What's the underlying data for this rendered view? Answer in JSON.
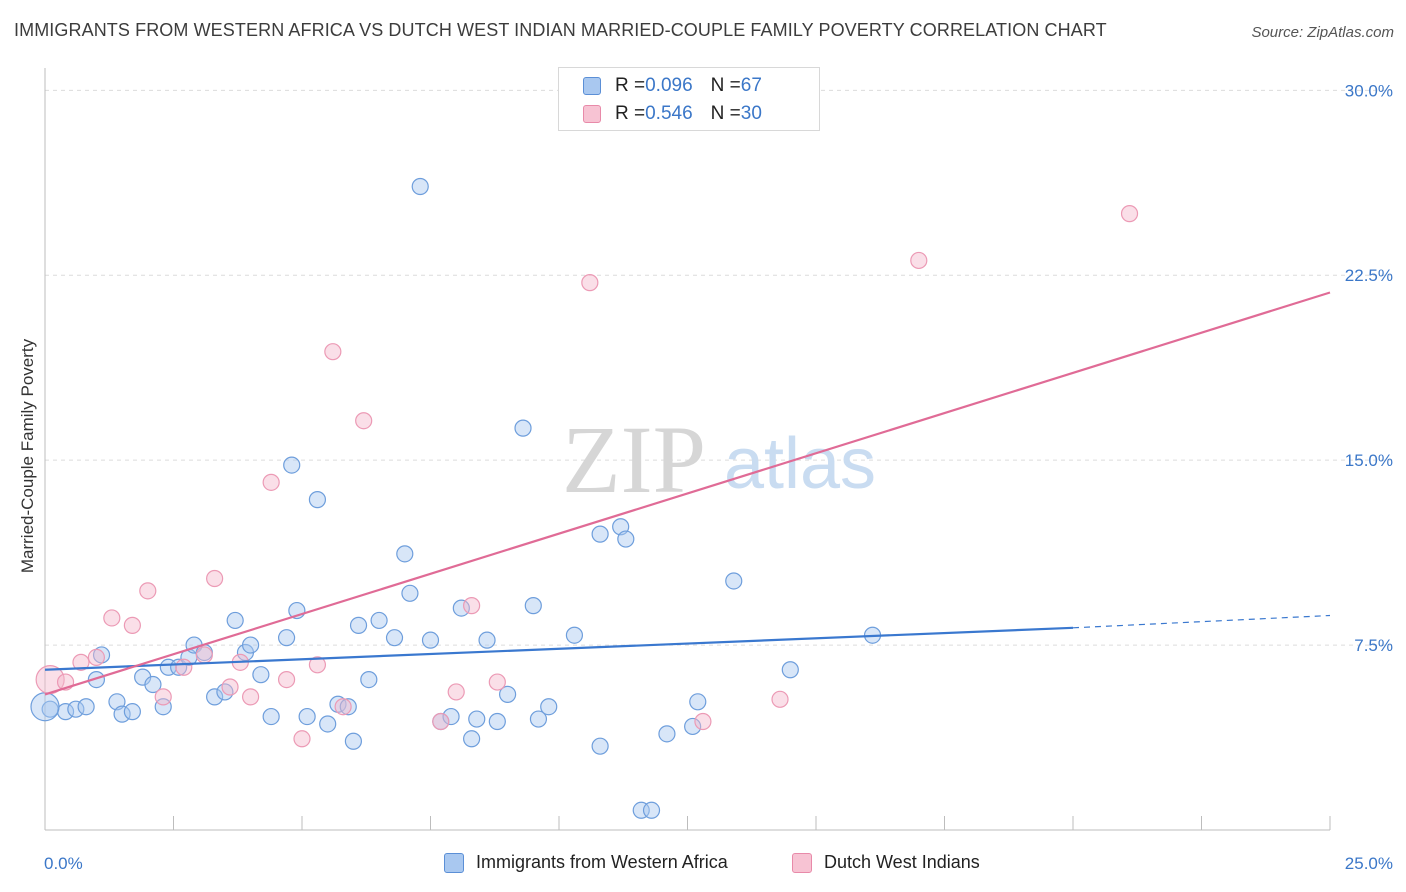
{
  "title": "IMMIGRANTS FROM WESTERN AFRICA VS DUTCH WEST INDIAN MARRIED-COUPLE FAMILY POVERTY CORRELATION CHART",
  "source": "Source: ZipAtlas.com",
  "colors": {
    "blue": "#3a78cf",
    "blue_fill": "#a9c8f0",
    "pink": "#e06b96",
    "pink_fill": "#f5b8cb",
    "grid": "#dddddd",
    "tick_text": "#3b77c8"
  },
  "legend": {
    "rows": [
      {
        "r_label": "R = ",
        "r_value": "0.096",
        "n_label": "N = ",
        "n_value": "67"
      },
      {
        "r_label": "R = ",
        "r_value": "0.546",
        "n_label": "N = ",
        "n_value": "30"
      }
    ]
  },
  "watermark": {
    "zip": "ZIP",
    "atlas": "atlas"
  },
  "chart_data": {
    "type": "scatter",
    "title": "IMMIGRANTS FROM WESTERN AFRICA VS DUTCH WEST INDIAN MARRIED-COUPLE FAMILY POVERTY CORRELATION CHART",
    "xlabel": "",
    "ylabel": "Married-Couple Family Poverty",
    "xlim": [
      0,
      25
    ],
    "ylim": [
      0,
      30.5
    ],
    "x_tick_labels": [
      {
        "value": 0,
        "label": "0.0%"
      },
      {
        "value": 25,
        "label": "25.0%"
      }
    ],
    "y_tick_labels": [
      {
        "value": 7.5,
        "label": "7.5%"
      },
      {
        "value": 15,
        "label": "15.0%"
      },
      {
        "value": 22.5,
        "label": "22.5%"
      },
      {
        "value": 30,
        "label": "30.0%"
      }
    ],
    "x_minor_ticks": [
      2.5,
      5,
      7.5,
      10,
      12.5,
      15,
      17.5,
      20,
      22.5,
      25
    ],
    "grid": true,
    "legend_position": "top-center",
    "series": [
      {
        "name": "Immigrants from Western Africa",
        "color": "#3a78cf",
        "r": 0.096,
        "n": 67,
        "trend": {
          "x0": 0,
          "y0": 6.5,
          "x1": 20,
          "y1": 8.2,
          "dashed_to_x": 25,
          "dashed_to_y": 8.7
        },
        "points": [
          [
            0.1,
            4.9
          ],
          [
            0.4,
            4.8
          ],
          [
            0.6,
            4.9
          ],
          [
            0.8,
            5.0
          ],
          [
            1.0,
            6.1
          ],
          [
            1.1,
            7.1
          ],
          [
            1.4,
            5.2
          ],
          [
            1.5,
            4.7
          ],
          [
            1.7,
            4.8
          ],
          [
            1.9,
            6.2
          ],
          [
            2.1,
            5.9
          ],
          [
            2.3,
            5.0
          ],
          [
            2.4,
            6.6
          ],
          [
            2.6,
            6.6
          ],
          [
            2.8,
            7.0
          ],
          [
            2.9,
            7.5
          ],
          [
            3.1,
            7.2
          ],
          [
            3.3,
            5.4
          ],
          [
            3.5,
            5.6
          ],
          [
            3.7,
            8.5
          ],
          [
            3.9,
            7.2
          ],
          [
            4.0,
            7.5
          ],
          [
            4.2,
            6.3
          ],
          [
            4.4,
            4.6
          ],
          [
            4.7,
            7.8
          ],
          [
            4.8,
            14.8
          ],
          [
            4.9,
            8.9
          ],
          [
            5.1,
            4.6
          ],
          [
            5.3,
            13.4
          ],
          [
            5.5,
            4.3
          ],
          [
            5.7,
            5.1
          ],
          [
            5.9,
            5.0
          ],
          [
            6.0,
            3.6
          ],
          [
            6.1,
            8.3
          ],
          [
            6.3,
            6.1
          ],
          [
            6.5,
            8.5
          ],
          [
            6.8,
            7.8
          ],
          [
            7.0,
            11.2
          ],
          [
            7.1,
            9.6
          ],
          [
            7.3,
            26.1
          ],
          [
            7.5,
            7.7
          ],
          [
            7.7,
            4.4
          ],
          [
            7.9,
            4.6
          ],
          [
            8.1,
            9.0
          ],
          [
            8.3,
            3.7
          ],
          [
            8.4,
            4.5
          ],
          [
            8.6,
            7.7
          ],
          [
            8.8,
            4.4
          ],
          [
            9.0,
            5.5
          ],
          [
            9.3,
            16.3
          ],
          [
            9.5,
            9.1
          ],
          [
            9.6,
            4.5
          ],
          [
            9.8,
            5.0
          ],
          [
            10.3,
            7.9
          ],
          [
            10.8,
            3.4
          ],
          [
            10.8,
            12.0
          ],
          [
            11.2,
            12.3
          ],
          [
            11.3,
            11.8
          ],
          [
            11.6,
            0.8
          ],
          [
            11.8,
            0.8
          ],
          [
            12.1,
            3.9
          ],
          [
            12.6,
            4.2
          ],
          [
            12.7,
            5.2
          ],
          [
            13.4,
            10.1
          ],
          [
            14.5,
            6.5
          ],
          [
            16.1,
            7.9
          ],
          [
            0.0,
            5.0
          ]
        ]
      },
      {
        "name": "Dutch West Indians",
        "color": "#e06b96",
        "r": 0.546,
        "n": 30,
        "trend": {
          "x0": 0,
          "y0": 5.5,
          "x1": 25,
          "y1": 21.8
        },
        "points": [
          [
            0.1,
            6.1
          ],
          [
            0.4,
            6.0
          ],
          [
            0.7,
            6.8
          ],
          [
            1.0,
            7.0
          ],
          [
            1.3,
            8.6
          ],
          [
            1.7,
            8.3
          ],
          [
            2.0,
            9.7
          ],
          [
            2.3,
            5.4
          ],
          [
            2.7,
            6.6
          ],
          [
            3.1,
            7.1
          ],
          [
            3.3,
            10.2
          ],
          [
            3.6,
            5.8
          ],
          [
            3.8,
            6.8
          ],
          [
            4.0,
            5.4
          ],
          [
            4.4,
            14.1
          ],
          [
            4.7,
            6.1
          ],
          [
            5.0,
            3.7
          ],
          [
            5.3,
            6.7
          ],
          [
            5.6,
            19.4
          ],
          [
            5.8,
            5.0
          ],
          [
            6.2,
            16.6
          ],
          [
            7.7,
            4.4
          ],
          [
            8.0,
            5.6
          ],
          [
            8.3,
            9.1
          ],
          [
            8.8,
            6.0
          ],
          [
            10.6,
            22.2
          ],
          [
            12.8,
            4.4
          ],
          [
            14.3,
            5.3
          ],
          [
            17.0,
            23.1
          ],
          [
            21.1,
            25.0
          ]
        ]
      }
    ]
  }
}
